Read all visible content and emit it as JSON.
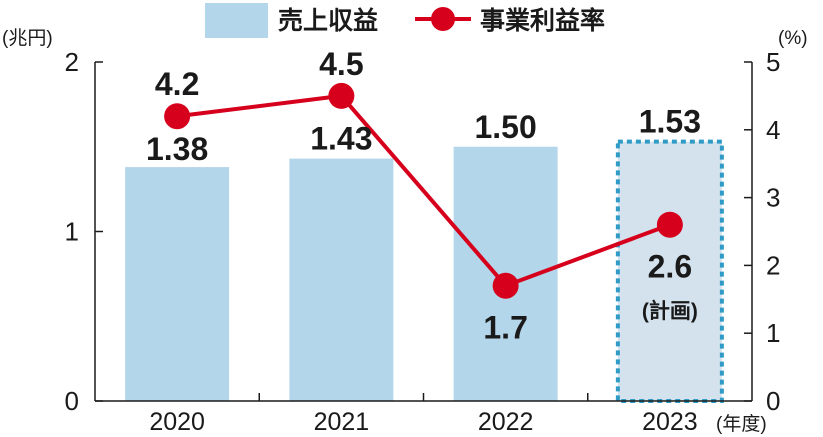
{
  "chart_data": {
    "type": "bar+line",
    "categories": [
      "2020",
      "2021",
      "2022",
      "2023"
    ],
    "xlabel": "(年度)",
    "left_axis": {
      "unit": "(兆円)",
      "ylim": [
        0,
        2
      ],
      "ticks": [
        "0",
        "1",
        "2"
      ]
    },
    "right_axis": {
      "unit": "(%)",
      "ylim": [
        0,
        5
      ],
      "ticks": [
        "0",
        "1",
        "2",
        "3",
        "4",
        "5"
      ]
    },
    "legend": {
      "placement": "top-center",
      "items": [
        "売上収益",
        "事業利益率"
      ]
    },
    "series": [
      {
        "name": "売上収益",
        "type": "bar",
        "axis": "left",
        "values": [
          1.38,
          1.43,
          1.5,
          1.53
        ],
        "labels": [
          "1.38",
          "1.43",
          "1.50",
          "1.53"
        ],
        "planned": [
          false,
          false,
          false,
          true
        ],
        "color": "#b3d6ea",
        "planned_color": "#d3e2ed",
        "planned_border": "#2f9bc6"
      },
      {
        "name": "事業利益率",
        "type": "line",
        "axis": "right",
        "values": [
          4.2,
          4.5,
          1.7,
          2.6
        ],
        "labels": [
          "4.2",
          "4.5",
          "1.7",
          "2.6"
        ],
        "color": "#d6001c"
      }
    ],
    "annotations": [
      {
        "category": "2023",
        "text": "(計画)"
      }
    ],
    "grid": false
  }
}
